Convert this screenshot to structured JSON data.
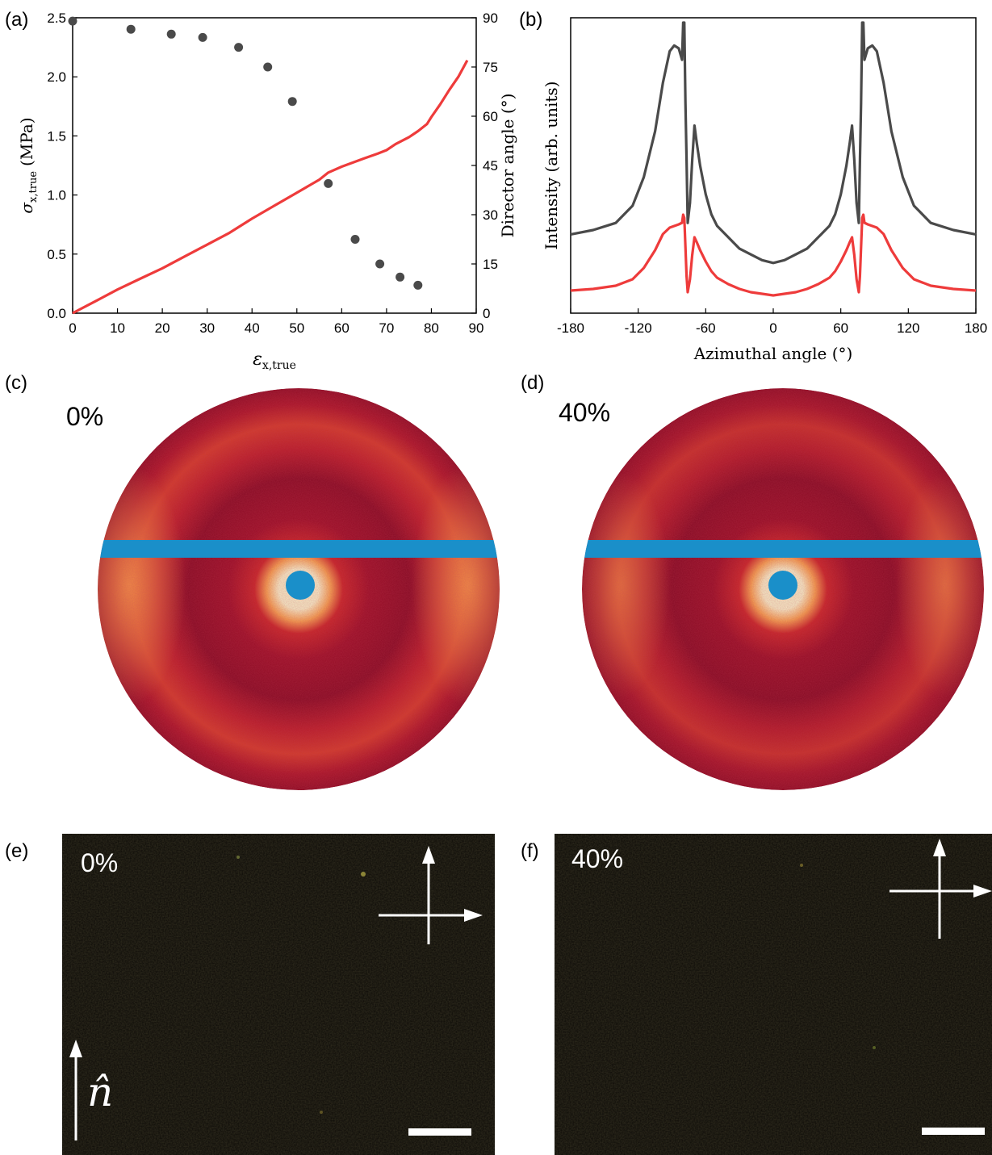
{
  "panel_labels": {
    "a": "(a)",
    "b": "(b)",
    "c": "(c)",
    "d": "(d)",
    "e": "(e)",
    "f": "(f)"
  },
  "colors": {
    "stress_curve": "#ee3b3b",
    "director_points": "#4a4a4a",
    "intensity_0": "#4a4a4a",
    "intensity_40": "#ee3b3b",
    "waxs_background": "#8c0d25",
    "beamstop": "#1a8fc9",
    "micrograph_background": "#0b0906"
  },
  "chart_data": [
    {
      "type": "line",
      "panel": "(a)",
      "xlabel": "ε",
      "xlabel_sub": "x,true",
      "ylabel": "σ",
      "ylabel_sub": "x,true",
      "ylabel_unit": "(MPa)",
      "y2label": "Director angle (°)",
      "xlim": [
        0,
        90
      ],
      "ylim": [
        0,
        2.5
      ],
      "y2lim": [
        0,
        90
      ],
      "xticks": [
        "0",
        "10",
        "20",
        "30",
        "40",
        "50",
        "60",
        "70",
        "80",
        "90"
      ],
      "yticks": [
        "0.0",
        "0.5",
        "1.0",
        "1.5",
        "2.0",
        "2.5"
      ],
      "y2ticks": [
        "0",
        "15",
        "30",
        "45",
        "60",
        "75",
        "90"
      ],
      "grid": false,
      "series": [
        {
          "axis": "left",
          "style": "line",
          "x": [
            0,
            5,
            10,
            15,
            20,
            25,
            30,
            35,
            40,
            45,
            50,
            55,
            57,
            60,
            65,
            68,
            70,
            72,
            75,
            77,
            79,
            80,
            82,
            84,
            86,
            88
          ],
          "y": [
            0.0,
            0.1,
            0.2,
            0.29,
            0.38,
            0.48,
            0.58,
            0.68,
            0.8,
            0.91,
            1.02,
            1.13,
            1.19,
            1.24,
            1.31,
            1.35,
            1.38,
            1.43,
            1.49,
            1.54,
            1.6,
            1.66,
            1.77,
            1.89,
            2.0,
            2.14
          ]
        },
        {
          "axis": "right",
          "style": "scatter",
          "x": [
            0,
            13,
            22,
            29,
            37,
            43.5,
            49,
            57,
            63,
            68.5,
            73,
            77
          ],
          "y": [
            89,
            86.5,
            85,
            84,
            81,
            75,
            64.5,
            39.5,
            22.5,
            15,
            11,
            8.5
          ]
        }
      ]
    },
    {
      "type": "line",
      "panel": "(b)",
      "xlabel": "Azimuthal angle (°)",
      "ylabel": "Intensity (arb. units)",
      "xlim": [
        -180,
        180
      ],
      "xticks": [
        "-180",
        "-120",
        "-60",
        "0",
        "60",
        "120",
        "180"
      ],
      "ylim": [
        0,
        100
      ],
      "grid": false,
      "series": [
        {
          "x": [
            -180,
            -160,
            -140,
            -125,
            -115,
            -105,
            -98,
            -92,
            -88,
            -84,
            -81,
            -80,
            -79,
            -78,
            -77,
            -76,
            -74,
            -72,
            -70,
            -68,
            -65,
            -60,
            -55,
            -50,
            -40,
            -30,
            -20,
            -10,
            0,
            10,
            20,
            30,
            40,
            50,
            55,
            60,
            65,
            68,
            70,
            72,
            74,
            76,
            77,
            78,
            79,
            80,
            81,
            84,
            88,
            92,
            98,
            105,
            115,
            125,
            140,
            160,
            180
          ],
          "y": [
            14,
            15.5,
            18,
            24,
            34,
            50,
            67,
            78,
            80,
            79,
            75,
            88,
            88,
            60,
            40,
            18,
            25,
            40,
            52,
            46,
            38,
            28,
            21,
            17,
            13,
            9,
            7,
            5,
            4,
            5,
            7,
            9,
            13,
            17,
            21,
            28,
            38,
            46,
            52,
            40,
            25,
            18,
            40,
            60,
            88,
            88,
            75,
            79,
            80,
            78,
            67,
            50,
            34,
            24,
            18,
            15.5,
            14
          ]
        },
        {
          "x": [
            -180,
            -160,
            -140,
            -125,
            -115,
            -105,
            -98,
            -92,
            -88,
            -84,
            -81,
            -80,
            -79,
            -78,
            -77,
            -76,
            -74,
            -72,
            -70,
            -68,
            -65,
            -60,
            -55,
            -50,
            -40,
            -30,
            -20,
            -10,
            0,
            10,
            20,
            30,
            40,
            50,
            55,
            60,
            65,
            68,
            70,
            72,
            74,
            76,
            77,
            78,
            79,
            80,
            81,
            84,
            88,
            92,
            98,
            105,
            115,
            125,
            140,
            160,
            180
          ],
          "y": [
            3,
            4,
            6,
            10,
            17,
            28,
            38,
            42,
            43,
            44,
            45,
            50,
            48,
            30,
            12,
            2,
            10,
            25,
            36,
            33,
            28,
            21,
            15,
            11,
            7,
            4,
            2,
            1,
            0,
            1,
            2,
            4,
            7,
            11,
            15,
            21,
            28,
            33,
            36,
            25,
            10,
            2,
            12,
            30,
            48,
            50,
            45,
            44,
            43,
            42,
            38,
            28,
            17,
            10,
            6,
            4,
            3
          ]
        }
      ]
    }
  ],
  "waxs": {
    "left": {
      "strain_label": "0%"
    },
    "right": {
      "strain_label": "40%"
    }
  },
  "micrographs": {
    "left": {
      "strain_label": "0%",
      "director_symbol": "n̂"
    },
    "right": {
      "strain_label": "40%"
    }
  }
}
